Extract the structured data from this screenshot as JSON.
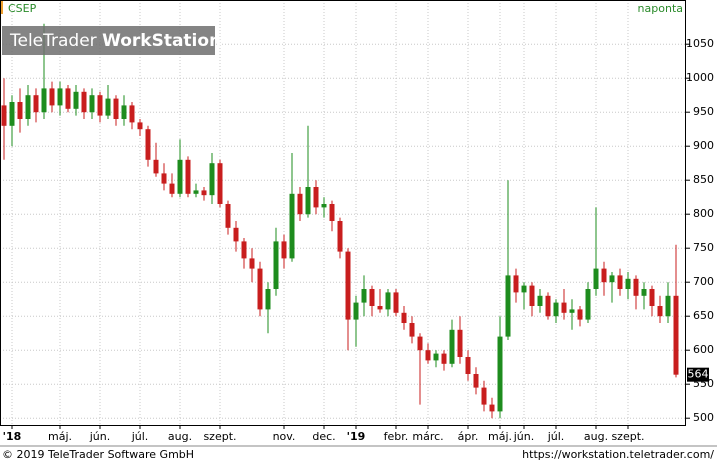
{
  "chart_data": {
    "type": "candlestick",
    "title": "CSEP",
    "subtitle": "naponta",
    "watermark": [
      "TeleTrader",
      "WorkStation"
    ],
    "copyright": "© 2019 TeleTrader Software GmbH",
    "source": "https://workstation.teletrader.com/",
    "up_color": "#1e8c1e",
    "down_color": "#c81e1e",
    "grid": true,
    "ylim": [
      490,
      1115
    ],
    "yticks": [
      500,
      550,
      600,
      650,
      700,
      750,
      800,
      850,
      900,
      950,
      1000,
      1050
    ],
    "categories": [
      null,
      "'18",
      null,
      null,
      null,
      null,
      null,
      "máj.",
      null,
      null,
      null,
      null,
      "jún.",
      null,
      null,
      null,
      null,
      "júl.",
      null,
      null,
      null,
      null,
      "aug.",
      null,
      null,
      null,
      null,
      "szept.",
      null,
      null,
      null,
      null,
      null,
      null,
      null,
      "nov.",
      null,
      null,
      null,
      null,
      "dec.",
      null,
      null,
      null,
      "'19",
      null,
      null,
      null,
      null,
      "febr.",
      null,
      null,
      null,
      "márc.",
      null,
      null,
      null,
      null,
      "ápr.",
      null,
      null,
      null,
      "máj.",
      null,
      null,
      "jún.",
      null,
      null,
      null,
      "júl.",
      null,
      null,
      null,
      null,
      "aug.",
      null,
      null,
      null,
      "szept.",
      null,
      null,
      null,
      null,
      null,
      null
    ],
    "ohlc": [
      [
        960,
        1000,
        880,
        930
      ],
      [
        930,
        975,
        900,
        965
      ],
      [
        965,
        985,
        920,
        940
      ],
      [
        940,
        990,
        930,
        975
      ],
      [
        975,
        985,
        935,
        950
      ],
      [
        950,
        1080,
        940,
        985
      ],
      [
        985,
        995,
        950,
        960
      ],
      [
        960,
        995,
        945,
        985
      ],
      [
        985,
        990,
        950,
        955
      ],
      [
        955,
        990,
        945,
        980
      ],
      [
        980,
        985,
        940,
        950
      ],
      [
        950,
        985,
        940,
        975
      ],
      [
        975,
        980,
        935,
        945
      ],
      [
        945,
        990,
        940,
        970
      ],
      [
        970,
        975,
        930,
        940
      ],
      [
        940,
        975,
        930,
        960
      ],
      [
        960,
        965,
        925,
        935
      ],
      [
        935,
        940,
        915,
        925
      ],
      [
        925,
        930,
        870,
        880
      ],
      [
        880,
        905,
        855,
        860
      ],
      [
        860,
        875,
        835,
        845
      ],
      [
        845,
        860,
        825,
        830
      ],
      [
        830,
        910,
        825,
        880
      ],
      [
        880,
        885,
        825,
        830
      ],
      [
        830,
        845,
        825,
        835
      ],
      [
        835,
        840,
        820,
        828
      ],
      [
        828,
        890,
        815,
        875
      ],
      [
        875,
        880,
        810,
        815
      ],
      [
        815,
        820,
        770,
        780
      ],
      [
        780,
        790,
        745,
        760
      ],
      [
        760,
        765,
        720,
        735
      ],
      [
        735,
        750,
        700,
        720
      ],
      [
        720,
        730,
        650,
        660
      ],
      [
        660,
        700,
        625,
        690
      ],
      [
        690,
        780,
        680,
        760
      ],
      [
        760,
        770,
        720,
        735
      ],
      [
        735,
        890,
        730,
        830
      ],
      [
        830,
        840,
        790,
        800
      ],
      [
        800,
        930,
        795,
        840
      ],
      [
        840,
        850,
        800,
        810
      ],
      [
        810,
        825,
        795,
        815
      ],
      [
        815,
        820,
        775,
        790
      ],
      [
        790,
        795,
        735,
        745
      ],
      [
        745,
        750,
        600,
        645
      ],
      [
        645,
        680,
        605,
        670
      ],
      [
        670,
        710,
        650,
        690
      ],
      [
        690,
        695,
        650,
        665
      ],
      [
        665,
        690,
        655,
        660
      ],
      [
        660,
        690,
        650,
        685
      ],
      [
        685,
        690,
        650,
        655
      ],
      [
        655,
        665,
        630,
        640
      ],
      [
        640,
        650,
        610,
        620
      ],
      [
        620,
        625,
        520,
        600
      ],
      [
        600,
        610,
        580,
        585
      ],
      [
        585,
        600,
        575,
        595
      ],
      [
        595,
        600,
        570,
        580
      ],
      [
        580,
        645,
        575,
        630
      ],
      [
        630,
        650,
        580,
        590
      ],
      [
        590,
        600,
        555,
        565
      ],
      [
        565,
        575,
        535,
        545
      ],
      [
        545,
        555,
        510,
        520
      ],
      [
        520,
        530,
        500,
        510
      ],
      [
        510,
        650,
        500,
        620
      ],
      [
        620,
        850,
        615,
        710
      ],
      [
        710,
        720,
        670,
        685
      ],
      [
        685,
        700,
        660,
        695
      ],
      [
        695,
        700,
        650,
        665
      ],
      [
        665,
        690,
        655,
        680
      ],
      [
        680,
        685,
        645,
        650
      ],
      [
        650,
        675,
        640,
        670
      ],
      [
        670,
        690,
        645,
        655
      ],
      [
        655,
        675,
        630,
        660
      ],
      [
        660,
        665,
        635,
        645
      ],
      [
        645,
        700,
        640,
        690
      ],
      [
        690,
        810,
        680,
        720
      ],
      [
        720,
        730,
        680,
        700
      ],
      [
        700,
        715,
        670,
        710
      ],
      [
        710,
        720,
        680,
        690
      ],
      [
        690,
        715,
        675,
        705
      ],
      [
        705,
        710,
        660,
        680
      ],
      [
        680,
        700,
        660,
        690
      ],
      [
        690,
        695,
        650,
        665
      ],
      [
        665,
        680,
        640,
        650
      ],
      [
        650,
        700,
        640,
        680
      ],
      [
        680,
        755,
        560,
        564
      ]
    ]
  }
}
